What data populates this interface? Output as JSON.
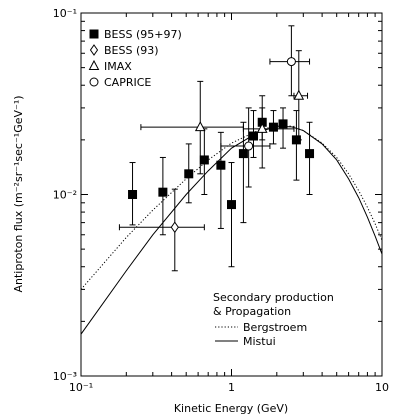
{
  "chart_data": {
    "type": "scatter",
    "title": "",
    "xlabel": "Kinetic Energy (GeV)",
    "ylabel": "Antiproton flux (m⁻²sr⁻¹sec⁻¹GeV⁻¹)",
    "xscale": "log",
    "yscale": "log",
    "xlim": [
      0.1,
      10
    ],
    "ylim": [
      0.001,
      0.1
    ],
    "xticks": [
      {
        "value": 0.1,
        "label": "10⁻¹"
      },
      {
        "value": 1,
        "label": "1"
      },
      {
        "value": 10,
        "label": "10"
      }
    ],
    "yticks": [
      {
        "value": 0.001,
        "label": "10⁻³"
      },
      {
        "value": 0.01,
        "label": "10⁻²"
      },
      {
        "value": 0.1,
        "label": "10⁻¹"
      }
    ],
    "grid": false,
    "legend_position": "top-left",
    "series": [
      {
        "name": "BESS (95+97)",
        "marker": "filled-square",
        "points": [
          {
            "x": 0.22,
            "y": 0.01,
            "ylo": 0.0068,
            "yhi": 0.015
          },
          {
            "x": 0.35,
            "y": 0.0103,
            "ylo": 0.006,
            "yhi": 0.016
          },
          {
            "x": 0.52,
            "y": 0.013,
            "ylo": 0.009,
            "yhi": 0.019
          },
          {
            "x": 0.66,
            "y": 0.0155,
            "ylo": 0.01,
            "yhi": 0.023
          },
          {
            "x": 0.85,
            "y": 0.0145,
            "ylo": 0.0065,
            "yhi": 0.022
          },
          {
            "x": 1.0,
            "y": 0.0088,
            "ylo": 0.004,
            "yhi": 0.015
          },
          {
            "x": 1.2,
            "y": 0.0168,
            "ylo": 0.007,
            "yhi": 0.025
          },
          {
            "x": 1.4,
            "y": 0.021,
            "ylo": 0.016,
            "yhi": 0.029
          },
          {
            "x": 1.6,
            "y": 0.025,
            "ylo": 0.02,
            "yhi": 0.03
          },
          {
            "x": 1.9,
            "y": 0.0235,
            "ylo": 0.019,
            "yhi": 0.029
          },
          {
            "x": 2.2,
            "y": 0.0245,
            "ylo": 0.018,
            "yhi": 0.03
          },
          {
            "x": 2.7,
            "y": 0.02,
            "ylo": 0.012,
            "yhi": 0.029
          },
          {
            "x": 3.3,
            "y": 0.0168,
            "ylo": 0.01,
            "yhi": 0.025
          }
        ]
      },
      {
        "name": "BESS (93)",
        "marker": "open-diamond",
        "points": [
          {
            "x": 0.42,
            "y": 0.0066,
            "ylo": 0.0038,
            "yhi": 0.0107,
            "xlo": 0.18,
            "xhi": 0.66
          }
        ]
      },
      {
        "name": "IMAX",
        "marker": "open-triangle",
        "points": [
          {
            "x": 0.62,
            "y": 0.0235,
            "ylo": 0.013,
            "yhi": 0.042,
            "xlo": 0.25,
            "xhi": 1.2
          },
          {
            "x": 1.6,
            "y": 0.023,
            "ylo": 0.014,
            "yhi": 0.035,
            "xlo": 1.2,
            "xhi": 2.6
          },
          {
            "x": 2.8,
            "y": 0.035,
            "ylo": 0.02,
            "yhi": 0.062,
            "xlo": 2.6,
            "xhi": 3.2
          }
        ]
      },
      {
        "name": "CAPRICE",
        "marker": "open-circle",
        "points": [
          {
            "x": 1.3,
            "y": 0.0185,
            "ylo": 0.011,
            "yhi": 0.03,
            "xlo": 0.85,
            "xhi": 1.8
          },
          {
            "x": 2.5,
            "y": 0.054,
            "ylo": 0.035,
            "yhi": 0.085,
            "xlo": 1.8,
            "xhi": 3.3
          }
        ]
      }
    ],
    "curves_legend_title": [
      "Secondary production",
      "& Propagation"
    ],
    "curves": [
      {
        "name": "Bergstroem",
        "style": "dotted",
        "points": [
          [
            0.1,
            0.003
          ],
          [
            0.2,
            0.0058
          ],
          [
            0.3,
            0.0082
          ],
          [
            0.5,
            0.0122
          ],
          [
            0.7,
            0.0155
          ],
          [
            1.0,
            0.0192
          ],
          [
            1.5,
            0.0225
          ],
          [
            2.0,
            0.024
          ],
          [
            2.5,
            0.0238
          ],
          [
            3.0,
            0.0225
          ],
          [
            4.0,
            0.0192
          ],
          [
            5.0,
            0.016
          ],
          [
            6.0,
            0.013
          ],
          [
            7.0,
            0.0105
          ],
          [
            8.0,
            0.0085
          ],
          [
            9.0,
            0.0069
          ],
          [
            10.0,
            0.0056
          ]
        ]
      },
      {
        "name": "Mistui",
        "style": "solid",
        "points": [
          [
            0.1,
            0.0017
          ],
          [
            0.2,
            0.0038
          ],
          [
            0.3,
            0.006
          ],
          [
            0.5,
            0.01
          ],
          [
            0.7,
            0.0135
          ],
          [
            1.0,
            0.018
          ],
          [
            1.5,
            0.022
          ],
          [
            2.0,
            0.0238
          ],
          [
            2.5,
            0.0236
          ],
          [
            3.0,
            0.0225
          ],
          [
            4.0,
            0.019
          ],
          [
            5.0,
            0.0155
          ],
          [
            6.0,
            0.0122
          ],
          [
            7.0,
            0.0096
          ],
          [
            8.0,
            0.0075
          ],
          [
            9.0,
            0.0059
          ],
          [
            10.0,
            0.0047
          ]
        ]
      }
    ]
  }
}
